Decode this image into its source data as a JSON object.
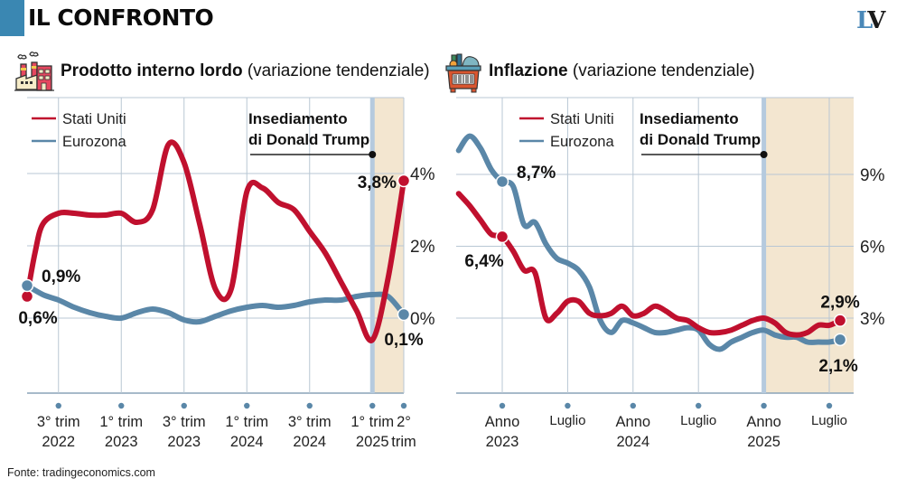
{
  "header": {
    "title": "IL CONFRONTO",
    "logo_left": "L",
    "logo_right": "V",
    "brand_color": "#3a87b2"
  },
  "icons": {
    "gdp": "factory-icon",
    "inflation": "shopping-basket-icon"
  },
  "source": "Fonte: tradingeconomics.com",
  "colors": {
    "us": "#c0102e",
    "eurozone": "#5a87a8",
    "grid": "#b8c7d4",
    "shade": "#f3e6d0",
    "inauguration_line": "#b5cade"
  },
  "chart_data": [
    {
      "type": "line",
      "id": "gdp",
      "title_bold": "Prodotto interno lordo",
      "title_normal": " (variazione tendenziale)",
      "xlabel": "",
      "ylabel": "",
      "ylim": [
        -2.1,
        5.0
      ],
      "yticks": [
        {
          "value": 4,
          "label": "4%"
        },
        {
          "value": 2,
          "label": "2%"
        },
        {
          "value": 0,
          "label": "0%"
        }
      ],
      "xlim": [
        0,
        12.5
      ],
      "xticks": [
        {
          "x": 1,
          "line1": "3° trim",
          "line2": "2022"
        },
        {
          "x": 3,
          "line1": "1° trim",
          "line2": "2023"
        },
        {
          "x": 5,
          "line1": "3° trim",
          "line2": "2023"
        },
        {
          "x": 7,
          "line1": "1° trim",
          "line2": "2024"
        },
        {
          "x": 9,
          "line1": "3° trim",
          "line2": "2024"
        },
        {
          "x": 11,
          "line1": "1° trim",
          "line2": "2025"
        },
        {
          "x": 12,
          "line1": "2°",
          "line2": "trim"
        }
      ],
      "legend": [
        {
          "name": "Stati Uniti",
          "key": "us"
        },
        {
          "name": "Eurozona",
          "key": "eurozone"
        }
      ],
      "legend_position": "top-left",
      "annotation": {
        "line1": "Insediamento",
        "line2": "di Donald Trump",
        "x": 11
      },
      "shaded_from_x": 11,
      "series": [
        {
          "name": "Stati Uniti",
          "key": "us",
          "x": [
            0,
            0.25,
            0.5,
            1,
            1.5,
            2,
            2.5,
            3,
            3.5,
            4,
            4.5,
            5,
            5.5,
            6,
            6.5,
            7,
            7.5,
            8,
            8.5,
            9,
            9.5,
            10,
            10.5,
            11,
            11.5,
            12
          ],
          "values": [
            0.6,
            1.8,
            2.6,
            2.9,
            2.9,
            2.85,
            2.85,
            2.9,
            2.65,
            3.0,
            4.8,
            4.3,
            2.6,
            0.8,
            0.8,
            3.5,
            3.6,
            3.2,
            3.0,
            2.4,
            1.8,
            1.0,
            0.2,
            -0.6,
            1.1,
            3.8
          ],
          "labels": [
            {
              "x": 0,
              "value": 0.6,
              "text": "0,6%",
              "position": "below"
            },
            {
              "x": 12,
              "value": 3.8,
              "text": "3,8%",
              "position": "left"
            }
          ]
        },
        {
          "name": "Eurozona",
          "key": "eurozone",
          "x": [
            0,
            0.5,
            1,
            1.5,
            2,
            2.5,
            3,
            3.5,
            4,
            4.5,
            5,
            5.5,
            6,
            6.5,
            7,
            7.5,
            8,
            8.5,
            9,
            9.5,
            10,
            10.5,
            11,
            11.5,
            12
          ],
          "values": [
            0.9,
            0.65,
            0.5,
            0.3,
            0.15,
            0.05,
            0.0,
            0.15,
            0.25,
            0.15,
            -0.05,
            -0.1,
            0.05,
            0.2,
            0.3,
            0.35,
            0.3,
            0.35,
            0.45,
            0.5,
            0.5,
            0.6,
            0.65,
            0.6,
            0.1
          ],
          "labels": [
            {
              "x": 0,
              "value": 0.9,
              "text": "0,9%",
              "position": "right"
            },
            {
              "x": 12,
              "value": 0.1,
              "text": "0,1%",
              "position": "below"
            }
          ]
        }
      ]
    },
    {
      "type": "line",
      "id": "inflation",
      "title_bold": "Inflazione",
      "title_normal": " (variazione tendenziale)",
      "xlabel": "",
      "ylabel": "",
      "ylim": [
        0,
        12.5
      ],
      "yticks": [
        {
          "value": 9,
          "label": "9%"
        },
        {
          "value": 6,
          "label": "6%"
        },
        {
          "value": 3,
          "label": "3%"
        }
      ],
      "xlim": [
        -4.3,
        31.5
      ],
      "xticks": [
        {
          "x": 0,
          "line1": "Anno",
          "line2": "2023"
        },
        {
          "x": 6,
          "line1": "Luglio",
          "line2": ""
        },
        {
          "x": 12,
          "line1": "Anno",
          "line2": "2024"
        },
        {
          "x": 18,
          "line1": "Luglio",
          "line2": ""
        },
        {
          "x": 24,
          "line1": "Anno",
          "line2": "2025"
        },
        {
          "x": 30,
          "line1": "Luglio",
          "line2": ""
        }
      ],
      "legend": [
        {
          "name": "Stati Uniti",
          "key": "us"
        },
        {
          "name": "Eurozona",
          "key": "eurozone"
        }
      ],
      "legend_position": "top-left",
      "annotation": {
        "line1": "Insediamento",
        "line2": "di Donald Trump",
        "x": 24
      },
      "shaded_from_x": 24,
      "series": [
        {
          "name": "Stati Uniti",
          "key": "us",
          "x": [
            -4,
            -3,
            -2,
            -1,
            0,
            1,
            2,
            3,
            4,
            5,
            6,
            7,
            8,
            9,
            10,
            11,
            12,
            13,
            14,
            15,
            16,
            17,
            18,
            19,
            20,
            21,
            22,
            23,
            24,
            25,
            26,
            27,
            28,
            29,
            30,
            31
          ],
          "values": [
            8.2,
            7.7,
            7.1,
            6.5,
            6.4,
            5.8,
            5.0,
            4.9,
            3.0,
            3.2,
            3.7,
            3.7,
            3.2,
            3.1,
            3.2,
            3.5,
            3.1,
            3.2,
            3.5,
            3.3,
            3.0,
            2.9,
            2.6,
            2.4,
            2.4,
            2.5,
            2.7,
            2.9,
            3.0,
            2.8,
            2.4,
            2.3,
            2.4,
            2.7,
            2.7,
            2.9
          ],
          "labels": [
            {
              "x": 0,
              "value": 6.4,
              "text": "6,4%",
              "position": "below-left"
            },
            {
              "x": 31,
              "value": 2.9,
              "text": "2,9%",
              "position": "above"
            }
          ]
        },
        {
          "name": "Eurozona",
          "key": "eurozone",
          "x": [
            -4,
            -3,
            -2,
            -1,
            0,
            1,
            2,
            3,
            4,
            5,
            6,
            7,
            8,
            9,
            10,
            11,
            12,
            13,
            14,
            15,
            16,
            17,
            18,
            19,
            20,
            21,
            22,
            23,
            24,
            25,
            26,
            27,
            28,
            29,
            30,
            31
          ],
          "values": [
            10.0,
            10.6,
            10.1,
            9.2,
            8.7,
            8.5,
            6.9,
            7.0,
            6.1,
            5.5,
            5.3,
            5.0,
            4.3,
            2.9,
            2.4,
            2.9,
            2.8,
            2.6,
            2.4,
            2.4,
            2.5,
            2.6,
            2.5,
            1.9,
            1.7,
            2.0,
            2.2,
            2.4,
            2.5,
            2.3,
            2.2,
            2.2,
            2.0,
            2.0,
            2.0,
            2.1
          ],
          "labels": [
            {
              "x": 0,
              "value": 8.7,
              "text": "8,7%",
              "position": "right"
            },
            {
              "x": 31,
              "value": 2.1,
              "text": "2,1%",
              "position": "below"
            }
          ]
        }
      ]
    }
  ]
}
